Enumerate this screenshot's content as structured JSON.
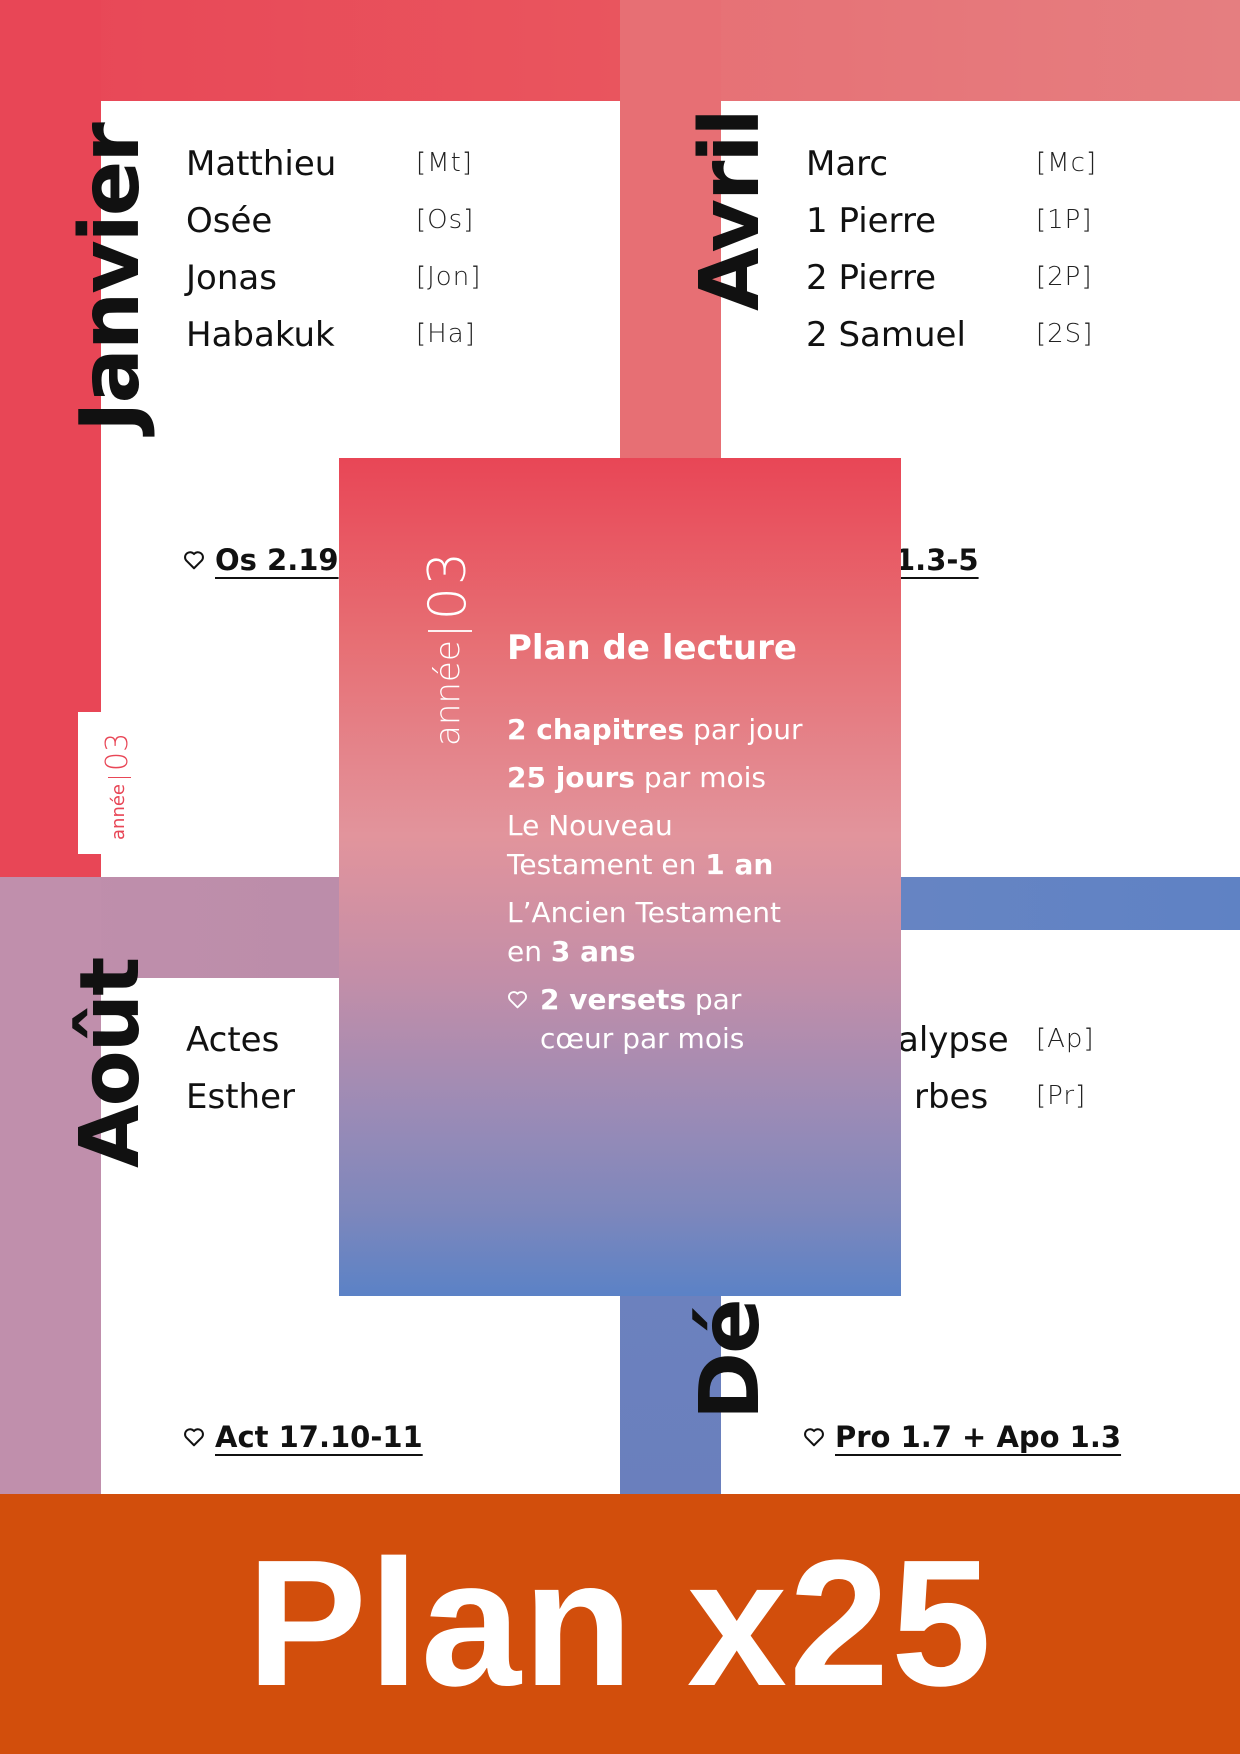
{
  "months": {
    "janvier": {
      "title": "Janvier",
      "books": [
        {
          "name": "Matthieu",
          "abbr": "[Mt]"
        },
        {
          "name": "Osée",
          "abbr": "[Os]"
        },
        {
          "name": "Jonas",
          "abbr": "[Jon]"
        },
        {
          "name": "Habakuk",
          "abbr": "[Ha]"
        }
      ],
      "verse": "Os 2.19"
    },
    "avril": {
      "title": "Avril",
      "books": [
        {
          "name": "Marc",
          "abbr": "[Mc]"
        },
        {
          "name": "1 Pierre",
          "abbr": "[1P]"
        },
        {
          "name": "2 Pierre",
          "abbr": "[2P]"
        },
        {
          "name": "2 Samuel",
          "abbr": "[2S]"
        }
      ],
      "verse": "1.3-5"
    },
    "aout": {
      "title": "Août",
      "books": [
        {
          "name": "Actes"
        },
        {
          "name": "Esther"
        }
      ],
      "verse": "Act 17.10-11"
    },
    "decembre": {
      "title": "Dé",
      "books": [
        {
          "name": "alypse",
          "abbr": "[Ap]"
        },
        {
          "name": "rbes",
          "abbr": "[Pr]"
        }
      ],
      "verse": "Pro 1.7 + Apo 1.3"
    }
  },
  "year_tab": {
    "label": "année",
    "number": "03"
  },
  "card": {
    "year_label": "année",
    "year_number": "03",
    "title": "Plan de lecture",
    "line1_bold": "2 chapitres",
    "line1_rest": " par jour",
    "line2_bold": "25 jours",
    "line2_rest": " par mois",
    "line3_a": "Le Nouveau",
    "line3_b": "Testament en ",
    "line3_bold": "1 an",
    "line4_a": "L’Ancien Testament",
    "line4_b": "en ",
    "line4_bold": "3 ans",
    "line5_bold": "2 versets",
    "line5_rest": " par",
    "line5_b": "cœur par mois"
  },
  "banner": {
    "text": "Plan x25"
  },
  "colors": {
    "janvier": "#e84656",
    "avril": "#e76f74",
    "aout": "#c08fac",
    "decembre": "#6a82c2",
    "banner": "#d24e0c"
  },
  "icons": {
    "verse_marker": "heart-outline-icon"
  }
}
